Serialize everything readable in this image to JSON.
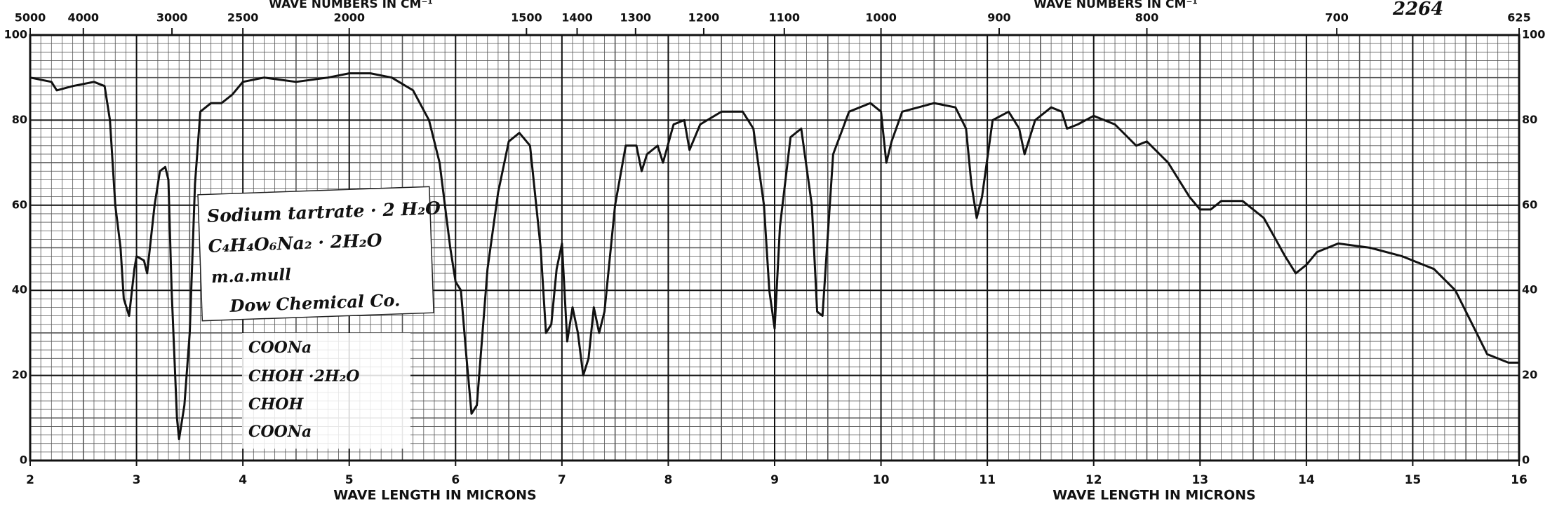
{
  "chart_data": {
    "type": "line",
    "title": "2264",
    "xlabel": "WAVE LENGTH IN MICRONS",
    "x2label": "WAVE NUMBERS IN CM⁻¹",
    "annotations": [
      "Sodium tartrate · 2 H₂O",
      "C₄H₄O₆Na₂ · 2H₂O",
      "m.a.mull",
      "Dow Chemical Co."
    ],
    "structure": [
      "COONa",
      "CHOH  ·2H₂O",
      "CHOH",
      "COONa"
    ],
    "xlim": [
      2,
      16
    ],
    "ylim": [
      0,
      100
    ],
    "xticks": [
      2,
      3,
      4,
      5,
      6,
      7,
      8,
      9,
      10,
      11,
      12,
      13,
      14,
      15,
      16
    ],
    "yticks": [
      0,
      20,
      40,
      60,
      80,
      100
    ],
    "x2ticks": [
      5000,
      4000,
      3000,
      2500,
      2000,
      1500,
      1400,
      1300,
      1200,
      1100,
      1000,
      900,
      800,
      700,
      625
    ],
    "grid": true,
    "series": [
      {
        "name": "Sodium tartrate · 2 H₂O",
        "color": "#111111",
        "x": [
          2.0,
          2.2,
          2.25,
          2.4,
          2.6,
          2.7,
          2.75,
          2.8,
          2.85,
          2.88,
          2.93,
          2.98,
          3.0,
          3.07,
          3.1,
          3.17,
          3.22,
          3.27,
          3.3,
          3.33,
          3.38,
          3.4,
          3.45,
          3.5,
          3.55,
          3.6,
          3.7,
          3.8,
          3.9,
          4.0,
          4.2,
          4.5,
          4.8,
          5.0,
          5.2,
          5.4,
          5.6,
          5.75,
          5.85,
          5.95,
          6.0,
          6.05,
          6.1,
          6.15,
          6.2,
          6.3,
          6.4,
          6.5,
          6.6,
          6.7,
          6.8,
          6.85,
          6.9,
          6.95,
          7.0,
          7.05,
          7.1,
          7.15,
          7.2,
          7.25,
          7.3,
          7.35,
          7.4,
          7.5,
          7.6,
          7.7,
          7.75,
          7.8,
          7.9,
          7.95,
          8.05,
          8.15,
          8.2,
          8.3,
          8.5,
          8.7,
          8.8,
          8.9,
          8.95,
          9.0,
          9.05,
          9.15,
          9.25,
          9.35,
          9.4,
          9.45,
          9.55,
          9.7,
          9.9,
          10.0,
          10.05,
          10.1,
          10.2,
          10.5,
          10.7,
          10.8,
          10.85,
          10.9,
          10.95,
          11.05,
          11.2,
          11.3,
          11.35,
          11.45,
          11.6,
          11.7,
          11.75,
          11.85,
          12.0,
          12.2,
          12.4,
          12.5,
          12.7,
          12.9,
          13.0,
          13.1,
          13.2,
          13.4,
          13.6,
          13.8,
          13.9,
          14.0,
          14.1,
          14.3,
          14.6,
          14.9,
          15.2,
          15.4,
          15.6,
          15.7,
          15.9,
          16.0
        ],
        "values": [
          90,
          89,
          87,
          88,
          89,
          88,
          80,
          60,
          50,
          38,
          34,
          45,
          48,
          47,
          44,
          60,
          68,
          69,
          66,
          40,
          10,
          5,
          13,
          30,
          65,
          82,
          84,
          84,
          86,
          89,
          90,
          89,
          90,
          91,
          91,
          90,
          87,
          80,
          70,
          50,
          42,
          40,
          25,
          11,
          13,
          45,
          63,
          75,
          77,
          74,
          50,
          30,
          32,
          45,
          51,
          28,
          36,
          30,
          20,
          24,
          36,
          30,
          35,
          60,
          74,
          74,
          68,
          72,
          74,
          70,
          79,
          80,
          73,
          79,
          82,
          82,
          78,
          60,
          40,
          31,
          55,
          76,
          78,
          60,
          35,
          34,
          72,
          82,
          84,
          82,
          70,
          75,
          82,
          84,
          83,
          78,
          65,
          57,
          62,
          80,
          82,
          78,
          72,
          80,
          83,
          82,
          78,
          79,
          81,
          79,
          74,
          75,
          70,
          62,
          59,
          59,
          61,
          61,
          57,
          48,
          44,
          46,
          49,
          51,
          50,
          48,
          45,
          40,
          30,
          25,
          23,
          23
        ]
      }
    ]
  }
}
